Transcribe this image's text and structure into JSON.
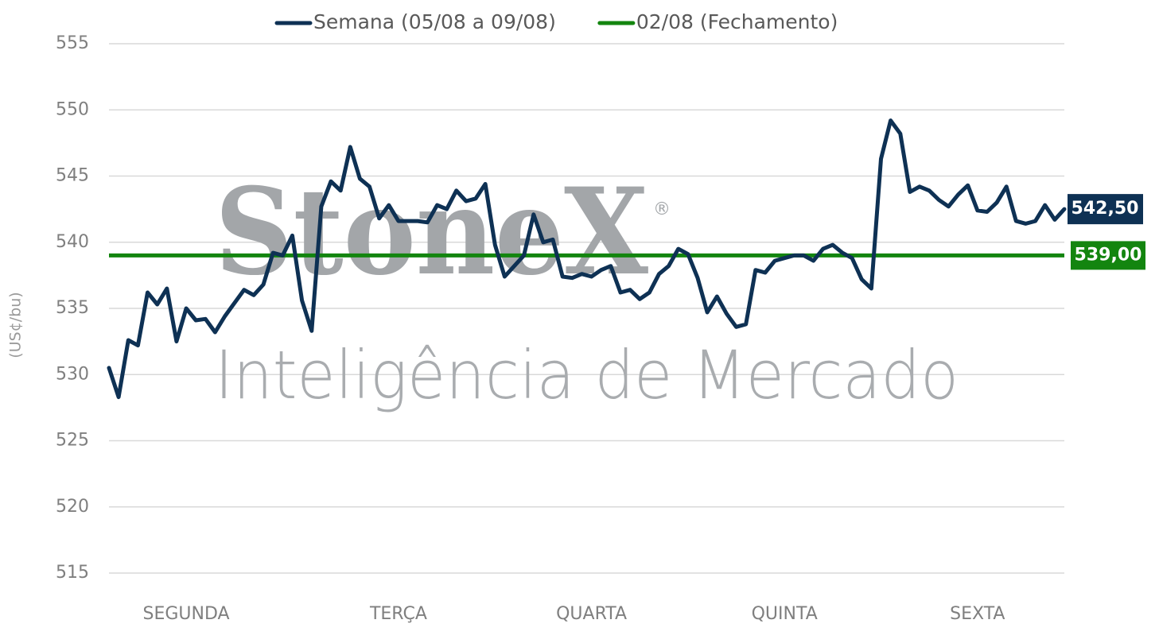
{
  "chart_data": {
    "type": "line",
    "watermark": {
      "brand": "StoneX",
      "mark": "®",
      "subtitle": "Inteligência de Mercado"
    },
    "y_label": "(US¢/bu)",
    "ylim": [
      515,
      555
    ],
    "yticks": [
      515,
      520,
      525,
      530,
      535,
      540,
      545,
      550,
      555
    ],
    "grid": true,
    "legend": "top",
    "categories": [
      null,
      null,
      null,
      null,
      null,
      null,
      null,
      null,
      "SEGUNDA",
      null,
      null,
      null,
      null,
      null,
      null,
      null,
      null,
      null,
      null,
      null,
      null,
      null,
      null,
      null,
      null,
      null,
      null,
      null,
      null,
      null,
      "TERÇA",
      null,
      null,
      null,
      null,
      null,
      null,
      null,
      null,
      null,
      null,
      null,
      null,
      null,
      null,
      null,
      null,
      null,
      null,
      null,
      "QUARTA",
      null,
      null,
      null,
      null,
      null,
      null,
      null,
      null,
      null,
      null,
      null,
      null,
      null,
      null,
      null,
      null,
      null,
      null,
      null,
      "QUINTA",
      null,
      null,
      null,
      null,
      null,
      null,
      null,
      null,
      null,
      null,
      null,
      null,
      null,
      null,
      null,
      null,
      null,
      null,
      null,
      "SEXTA",
      null,
      null,
      null,
      null,
      null,
      null,
      null,
      null,
      null
    ],
    "series": [
      {
        "name": "Semana (05/08 a 09/08)",
        "color": "#0e3154",
        "values": [
          530.5,
          528.3,
          532.6,
          532.2,
          536.2,
          535.3,
          536.5,
          532.5,
          535.0,
          534.1,
          534.2,
          533.2,
          534.4,
          535.4,
          536.4,
          536.0,
          536.8,
          539.2,
          539.0,
          540.5,
          535.6,
          533.3,
          542.7,
          544.6,
          543.9,
          547.2,
          544.8,
          544.2,
          541.8,
          542.8,
          541.6,
          541.6,
          541.6,
          541.5,
          542.8,
          542.5,
          543.9,
          543.1,
          543.3,
          544.4,
          539.8,
          537.4,
          538.2,
          539.0,
          542.1,
          540.0,
          540.2,
          537.4,
          537.3,
          537.6,
          537.4,
          537.9,
          538.2,
          536.2,
          536.4,
          535.7,
          536.2,
          537.6,
          538.2,
          539.5,
          539.1,
          537.3,
          534.7,
          535.9,
          534.6,
          533.6,
          533.8,
          537.9,
          537.7,
          538.6,
          538.8,
          539.0,
          539.0,
          538.6,
          539.5,
          539.8,
          539.2,
          538.8,
          537.2,
          536.5,
          546.3,
          549.2,
          548.2,
          543.8,
          544.2,
          543.9,
          543.2,
          542.7,
          543.6,
          544.3,
          542.4,
          542.3,
          543.0,
          544.2,
          541.6,
          541.4,
          541.6,
          542.8,
          541.7,
          542.5
        ],
        "end_label": {
          "value": 542.5,
          "label": "542,50"
        }
      }
    ],
    "hline": {
      "name": "02/08 (Fechamento)",
      "color": "#13850f",
      "value": 539,
      "value_label": "539,00"
    }
  }
}
